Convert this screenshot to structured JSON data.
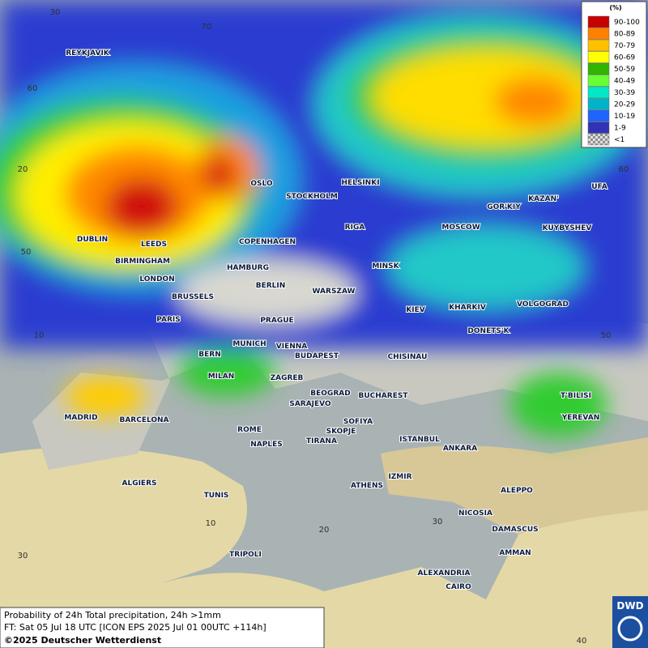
{
  "legend": {
    "title": "(%)",
    "entries": [
      {
        "label": "90-100",
        "color": "#c80000"
      },
      {
        "label": "80-89",
        "color": "#ff8000"
      },
      {
        "label": "70-79",
        "color": "#ffc000"
      },
      {
        "label": "60-69",
        "color": "#ffff00"
      },
      {
        "label": "50-59",
        "color": "#33b400"
      },
      {
        "label": "40-49",
        "color": "#66ff33"
      },
      {
        "label": "30-39",
        "color": "#00e8c8"
      },
      {
        "label": "20-29",
        "color": "#00b4c8"
      },
      {
        "label": "10-19",
        "color": "#1e64ff"
      },
      {
        "label": "1-9",
        "color": "#3232b4"
      },
      {
        "label": "<1",
        "color": "url(#chk)"
      }
    ]
  },
  "cities": [
    "REYKJAVIK",
    "OSLO",
    "STOCKHOLM",
    "HELSINKI",
    "DUBLIN",
    "LEEDS",
    "BIRMINGHAM",
    "LONDON",
    "COPENHAGEN",
    "HAMBURG",
    "BERLIN",
    "RIGA",
    "MOSCOW",
    "GOR'KIY",
    "KAZAN'",
    "UFA",
    "KUYBYSHEV",
    "MINSK",
    "WARSZAW",
    "BRUSSELS",
    "PARIS",
    "PRAGUE",
    "KIEV",
    "KHARKIV",
    "VOLGOGRAD",
    "DONETS'K",
    "MUNICH",
    "VIENNA",
    "BERN",
    "BUDAPEST",
    "CHISINAU",
    "MILAN",
    "ZAGREB",
    "BEOGRAD",
    "BUCHAREST",
    "T'BILISI",
    "YEREVAN",
    "SARAJEVO",
    "MADRID",
    "BARCELONA",
    "ROME",
    "SOFIYA",
    "SKOPJE",
    "TIRANA",
    "NAPLES",
    "ISTANBUL",
    "ANKARA",
    "IZMIR",
    "ATHENS",
    "ALGIERS",
    "TUNIS",
    "ALEPPO",
    "NICOSIA",
    "DAMASCUS",
    "AMMAN",
    "TRIPOLI",
    "ALEXANDRIA",
    "CAIRO"
  ],
  "graticule_labels": [
    30,
    70,
    60,
    20,
    50,
    10,
    60,
    50,
    10,
    20,
    30,
    40,
    30
  ],
  "caption": {
    "product": "Probability of 24h Total precipitation, 24h >1mm",
    "forecast": "FT: Sat 05 Jul 18 UTC [ICON EPS 2025 Jul 01 00UTC +114h]",
    "copyright": "©2025 Deutscher Wetterdienst"
  },
  "logo": "DWD"
}
